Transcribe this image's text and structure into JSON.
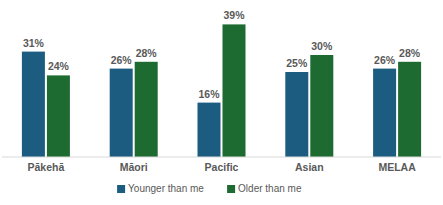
{
  "chart_data": {
    "type": "bar",
    "categories": [
      "Pākehā",
      "Māori",
      "Pacific",
      "Asian",
      "MELAA"
    ],
    "series": [
      {
        "name": "Younger than me",
        "color": "#1b5c80",
        "values": [
          31,
          26,
          16,
          25,
          26
        ],
        "value_labels": [
          "31%",
          "26%",
          "16%",
          "25%",
          "26%"
        ]
      },
      {
        "name": "Older than me",
        "color": "#1e6b32",
        "values": [
          24,
          28,
          39,
          30,
          28
        ],
        "value_labels": [
          "24%",
          "28%",
          "39%",
          "30%",
          "28%"
        ]
      }
    ],
    "ylim": [
      0,
      40
    ],
    "grid": false,
    "legend": "bottom",
    "data_labels": true,
    "tick_labels": "x"
  }
}
